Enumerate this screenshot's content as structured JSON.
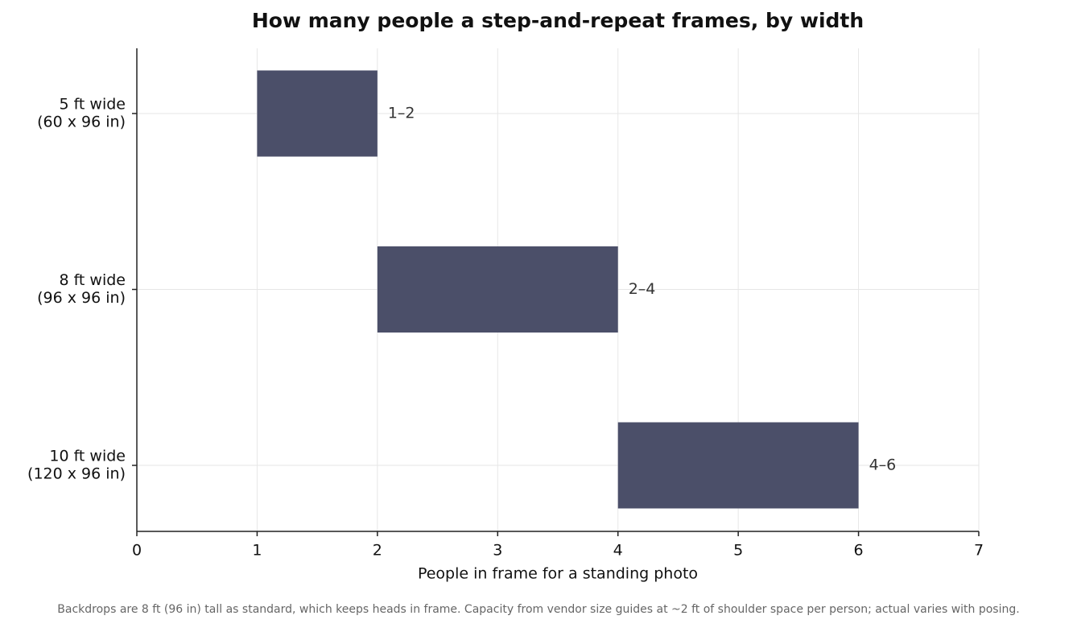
{
  "chart_data": {
    "type": "range_bar",
    "title": "How many people a step-and-repeat frames, by width",
    "categories": [
      [
        "5 ft wide",
        "(60 x 96 in)"
      ],
      [
        "8 ft wide",
        "(96 x 96 in)"
      ],
      [
        "10 ft wide",
        "(120 x 96 in)"
      ]
    ],
    "starts": [
      1,
      2,
      4
    ],
    "ends": [
      2,
      4,
      6
    ],
    "value_labels": [
      "1–2",
      "2–4",
      "4–6"
    ],
    "color": "#4b4f69",
    "xlabel": "People in frame for a standing photo",
    "xlim": [
      0,
      7
    ],
    "xticks": [
      0,
      1,
      2,
      3,
      4,
      5,
      6,
      7
    ],
    "grid": true,
    "footnote": "Backdrops are 8 ft (96 in) tall as standard, which keeps heads in frame. Capacity from vendor size guides at ~2 ft of shoulder space per person; actual varies with posing."
  }
}
